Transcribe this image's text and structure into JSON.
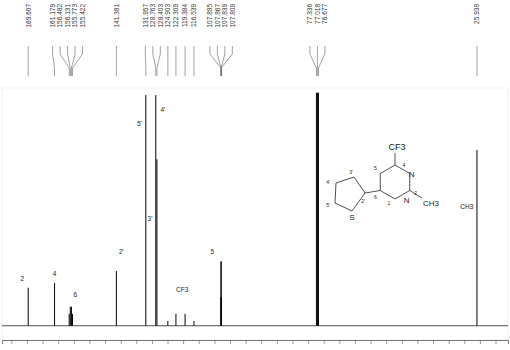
{
  "chart_data": {
    "type": "stem",
    "color": "#000000",
    "tick_labels": false,
    "x": [
      169.607,
      161.179,
      156.482,
      156.131,
      155.773,
      155.422,
      141.381,
      131.957,
      128.763,
      128.403,
      124.903,
      122.309,
      119.384,
      116.539,
      107.895,
      107.867,
      107.839,
      107.809,
      77.336,
      77.018,
      76.677,
      25.938
    ],
    "values": [
      16,
      18,
      5,
      8,
      8,
      5,
      23,
      97,
      97,
      70,
      2,
      5,
      5,
      2,
      12,
      27,
      27,
      12,
      98,
      98,
      98,
      74
    ],
    "xlim": [
      178,
      16
    ],
    "xticks": [
      175,
      170,
      165,
      160,
      155,
      150,
      145,
      140,
      135,
      130,
      125,
      120,
      115,
      110,
      105,
      100,
      95,
      90,
      85,
      80,
      75,
      70,
      65,
      60,
      55,
      50,
      45,
      40,
      35,
      30,
      25,
      20
    ],
    "ylim": [
      -6,
      100
    ],
    "yticks": [],
    "annotations": [
      {
        "x": 171.5,
        "y": 19,
        "text": "2"
      },
      {
        "x": 161.2,
        "y": 21,
        "text": "4"
      },
      {
        "x": 154.5,
        "y": 12,
        "text": "6"
      },
      {
        "x": 139.8,
        "y": 30,
        "text": "2'"
      },
      {
        "x": 134,
        "y": 84,
        "text": "5'"
      },
      {
        "x": 126.5,
        "y": 90,
        "text": "4'"
      },
      {
        "x": 130.6,
        "y": 44,
        "text": "3'"
      },
      {
        "x": 120.3,
        "y": 14,
        "text": "CF3"
      },
      {
        "x": 110.7,
        "y": 30,
        "text": "5"
      },
      {
        "x": 29.2,
        "y": 49,
        "text": "CH3"
      }
    ]
  },
  "structure": {
    "labels": [
      "CF3",
      "N",
      "N",
      "CH3",
      "S",
      "5",
      "4",
      "2",
      "1",
      "6",
      "2'",
      "3'",
      "4'",
      "5'"
    ]
  }
}
